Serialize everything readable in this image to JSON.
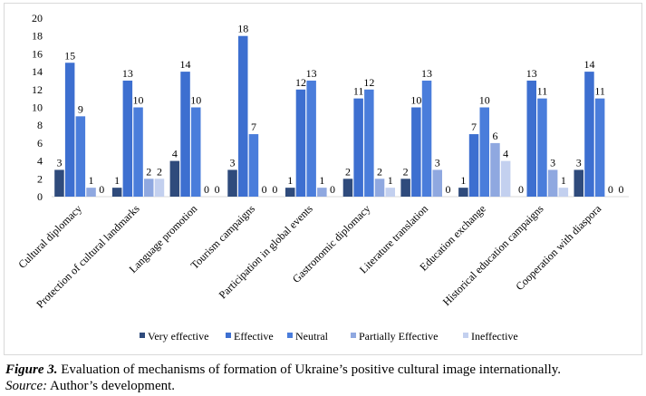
{
  "chart_data": {
    "type": "bar",
    "categories": [
      "Cultural diplomacy",
      "Protection of cultural landmarks",
      "Language promotion",
      "Tourism campaigns",
      "Participation in global events",
      "Gastronomic diplomacy",
      "Literature translation",
      "Education exchange",
      "Historical education campaigns",
      "Cooperation with diaspora"
    ],
    "series": [
      {
        "name": "Very effective",
        "color": "#2f4b7c",
        "values": [
          3,
          1,
          4,
          3,
          1,
          2,
          2,
          1,
          0,
          3
        ]
      },
      {
        "name": "Effective",
        "color": "#3d6fd0",
        "values": [
          15,
          13,
          14,
          18,
          12,
          11,
          10,
          7,
          13,
          14
        ]
      },
      {
        "name": "Neutral",
        "color": "#4a7ddb",
        "values": [
          9,
          10,
          10,
          7,
          13,
          12,
          13,
          10,
          11,
          11
        ]
      },
      {
        "name": "Partially Effective",
        "color": "#8fa8e0",
        "values": [
          1,
          2,
          0,
          0,
          1,
          2,
          3,
          6,
          3,
          0
        ]
      },
      {
        "name": "Ineffective",
        "color": "#c3d0ef",
        "values": [
          0,
          2,
          0,
          0,
          0,
          1,
          0,
          4,
          1,
          0
        ]
      }
    ],
    "ylim": [
      0,
      20
    ],
    "yticks": [
      0,
      2,
      4,
      6,
      8,
      10,
      12,
      14,
      16,
      18,
      20
    ],
    "grid": false,
    "legend_position": "bottom"
  },
  "caption": {
    "figure_label": "Figure 3.",
    "figure_text": " Evaluation of mechanisms of formation of Ukraine’s positive cultural image internationally.",
    "source_label": "Source:",
    "source_text": " Author’s development."
  }
}
